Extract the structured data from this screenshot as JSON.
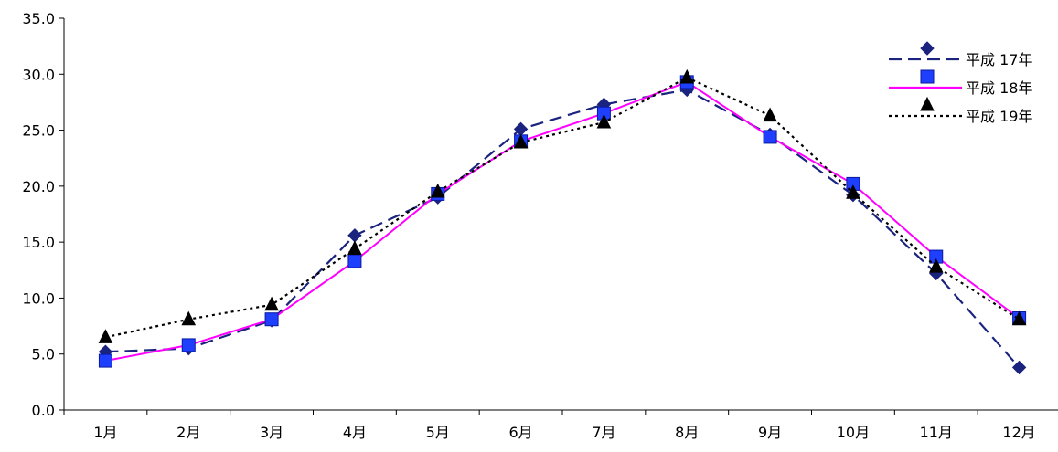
{
  "chart_data": {
    "type": "line",
    "title": "",
    "xlabel": "",
    "ylabel": "",
    "ylim": [
      0,
      35
    ],
    "y_ticks": [
      "0.0",
      "5.0",
      "10.0",
      "15.0",
      "20.0",
      "25.0",
      "30.0",
      "35.0"
    ],
    "grid": false,
    "legend_position": "top-right",
    "categories": [
      "1月",
      "2月",
      "3月",
      "4月",
      "5月",
      "6月",
      "7月",
      "8月",
      "9月",
      "10月",
      "11月",
      "12月"
    ],
    "series": [
      {
        "name": "平成 17年",
        "color": "#1a237e",
        "marker": "diamond",
        "line_style": "dashed",
        "values": [
          5.2,
          5.5,
          8.0,
          15.6,
          19.0,
          25.1,
          27.3,
          28.6,
          24.6,
          19.2,
          12.2,
          3.8
        ]
      },
      {
        "name": "平成 18年",
        "color": "#ff00ff",
        "marker_color": "#1f3fff",
        "marker": "square",
        "line_style": "solid",
        "values": [
          4.4,
          5.8,
          8.1,
          13.3,
          19.3,
          24.0,
          26.5,
          29.3,
          24.4,
          20.2,
          13.7,
          8.2
        ]
      },
      {
        "name": "平成 19年",
        "color": "#000000",
        "marker": "triangle",
        "line_style": "dotted",
        "values": [
          6.5,
          8.1,
          9.4,
          14.4,
          19.5,
          23.9,
          25.7,
          29.7,
          26.3,
          19.4,
          12.8,
          8.1
        ]
      }
    ]
  }
}
